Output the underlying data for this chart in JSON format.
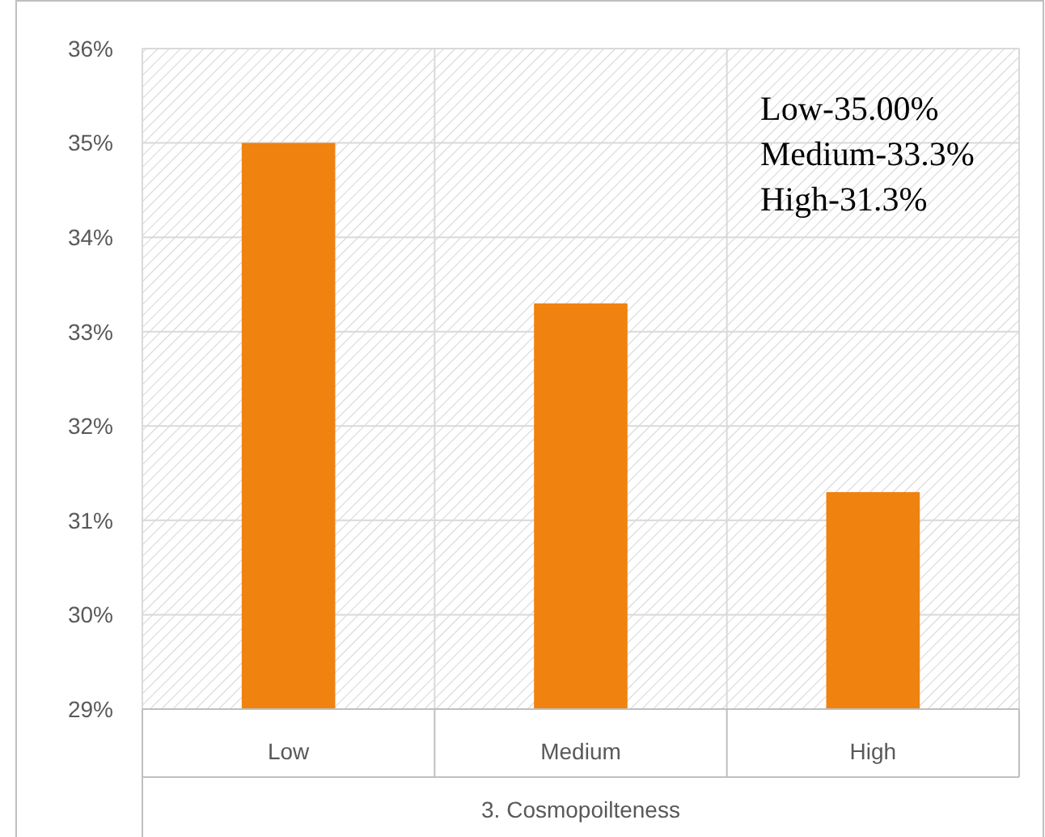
{
  "chart_data": {
    "type": "bar",
    "categories": [
      "Low",
      "Medium",
      "High"
    ],
    "values": [
      35,
      33.3,
      31.3
    ],
    "color": "#f0820f",
    "ylim": [
      29,
      36
    ],
    "yticks": [
      {
        "value": 29,
        "label": "29%"
      },
      {
        "value": 30,
        "label": "30%"
      },
      {
        "value": 31,
        "label": "31%"
      },
      {
        "value": 32,
        "label": "32%"
      },
      {
        "value": 33,
        "label": "33%"
      },
      {
        "value": 34,
        "label": "34%"
      },
      {
        "value": 35,
        "label": "35%"
      },
      {
        "value": 36,
        "label": "36%"
      }
    ],
    "grid": true,
    "xlabel": "3. Cosmopoilteness",
    "annotations": [
      "Low-35.00%",
      "Medium-33.3%",
      "High-31.3%"
    ]
  }
}
